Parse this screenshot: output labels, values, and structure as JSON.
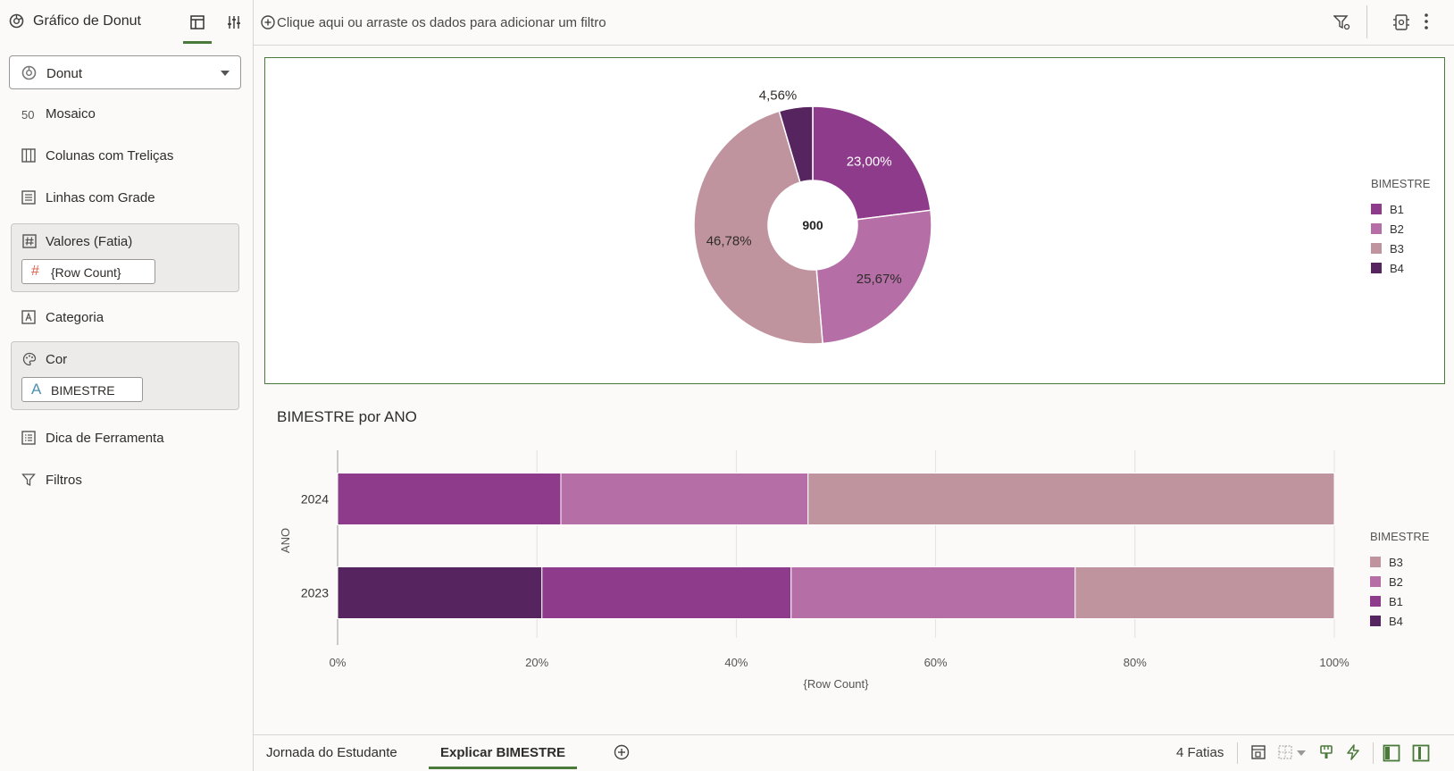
{
  "left_panel": {
    "title": "Gráfico de Donut",
    "chart_type": "Donut",
    "sections": {
      "mosaic": "Mosaico",
      "trellis_columns": "Colunas com Treliças",
      "grid_rows": "Linhas com Grade",
      "values": "Valores (Fatia)",
      "values_pill": "{Row Count}",
      "category": "Categoria",
      "color": "Cor",
      "color_pill": "BIMESTRE",
      "tooltip": "Dica de Ferramenta",
      "filters": "Filtros"
    },
    "mosaic_icon_text": "50"
  },
  "filter_bar": {
    "placeholder": "Clique aqui ou arraste os dados para adicionar um filtro"
  },
  "colors": {
    "B1": "#8e3b8b",
    "B2": "#b56ea6",
    "B3": "#c0949e",
    "B4": "#56245f",
    "accent": "#4a7a3a"
  },
  "chart_data": [
    {
      "type": "pie",
      "variant": "donut",
      "center_label": "900",
      "legend_title": "BIMESTRE",
      "legend_position": "right",
      "slices": [
        {
          "name": "B1",
          "value": 23.0,
          "label": "23,00%"
        },
        {
          "name": "B2",
          "value": 25.67,
          "label": "25,67%"
        },
        {
          "name": "B3",
          "value": 46.78,
          "label": "46,78%"
        },
        {
          "name": "B4",
          "value": 4.56,
          "label": "4,56%"
        }
      ]
    },
    {
      "type": "bar",
      "orientation": "horizontal",
      "stacked": "percent",
      "title": "BIMESTRE por ANO",
      "xlabel": "{Row Count}",
      "ylabel": "ANO",
      "xlim": [
        0,
        100
      ],
      "x_ticks": [
        "0%",
        "20%",
        "40%",
        "60%",
        "80%",
        "100%"
      ],
      "categories": [
        "2024",
        "2023"
      ],
      "legend_title": "BIMESTRE",
      "legend_position": "right",
      "legend_order": [
        "B3",
        "B2",
        "B1",
        "B4"
      ],
      "rows": [
        {
          "category": "2024",
          "segments": [
            {
              "name": "B1",
              "value": 22.4
            },
            {
              "name": "B2",
              "value": 24.8
            },
            {
              "name": "B3",
              "value": 52.8
            }
          ]
        },
        {
          "category": "2023",
          "segments": [
            {
              "name": "B4",
              "value": 20.5
            },
            {
              "name": "B1",
              "value": 25.0
            },
            {
              "name": "B2",
              "value": 28.5
            },
            {
              "name": "B3",
              "value": 26.0
            }
          ]
        }
      ],
      "grid": true
    }
  ],
  "bottom_bar": {
    "tabs": [
      "Jornada do Estudante",
      "Explicar BIMESTRE"
    ],
    "active_tab": "Explicar BIMESTRE",
    "slices_count": "4 Fatias"
  }
}
